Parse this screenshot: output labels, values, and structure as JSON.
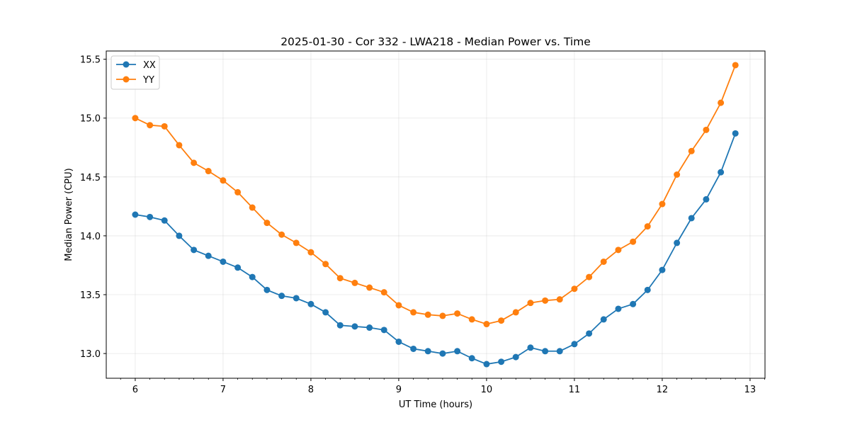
{
  "chart_data": {
    "type": "line",
    "title": "2025-01-30 - Cor 332 - LWA218 - Median Power vs. Time",
    "xlabel": "UT Time (hours)",
    "ylabel": "Median Power (CPU)",
    "xlim": [
      5.67,
      13.17
    ],
    "ylim": [
      12.79,
      15.57
    ],
    "xticks": [
      "6",
      "7",
      "8",
      "9",
      "10",
      "11",
      "12",
      "13"
    ],
    "yticks": [
      "13.0",
      "13.5",
      "14.0",
      "14.5",
      "15.0",
      "15.5"
    ],
    "grid": true,
    "legend_position": "upper-left",
    "x": [
      6.0,
      6.167,
      6.333,
      6.5,
      6.667,
      6.833,
      7.0,
      7.167,
      7.333,
      7.5,
      7.667,
      7.833,
      8.0,
      8.167,
      8.333,
      8.5,
      8.667,
      8.833,
      9.0,
      9.167,
      9.333,
      9.5,
      9.667,
      9.833,
      10.0,
      10.167,
      10.333,
      10.5,
      10.667,
      10.833,
      11.0,
      11.167,
      11.333,
      11.5,
      11.667,
      11.833,
      12.0,
      12.167,
      12.333,
      12.5,
      12.667,
      12.833
    ],
    "series": [
      {
        "name": "XX",
        "color": "#1f77b4",
        "values": [
          14.18,
          14.16,
          14.13,
          14.0,
          13.88,
          13.83,
          13.78,
          13.73,
          13.65,
          13.54,
          13.49,
          13.47,
          13.42,
          13.35,
          13.24,
          13.23,
          13.22,
          13.2,
          13.1,
          13.04,
          13.02,
          13.0,
          13.02,
          12.96,
          12.91,
          12.93,
          12.97,
          13.05,
          13.02,
          13.02,
          13.08,
          13.17,
          13.29,
          13.38,
          13.42,
          13.54,
          13.71,
          13.94,
          14.15,
          14.31,
          14.54,
          14.87
        ]
      },
      {
        "name": "YY",
        "color": "#ff7f0e",
        "values": [
          15.0,
          14.94,
          14.93,
          14.77,
          14.62,
          14.55,
          14.47,
          14.37,
          14.24,
          14.11,
          14.01,
          13.94,
          13.86,
          13.76,
          13.64,
          13.6,
          13.56,
          13.52,
          13.41,
          13.35,
          13.33,
          13.32,
          13.34,
          13.29,
          13.25,
          13.28,
          13.35,
          13.43,
          13.45,
          13.46,
          13.55,
          13.65,
          13.78,
          13.88,
          13.95,
          14.08,
          14.27,
          14.52,
          14.72,
          14.9,
          15.13,
          15.45
        ]
      }
    ]
  }
}
